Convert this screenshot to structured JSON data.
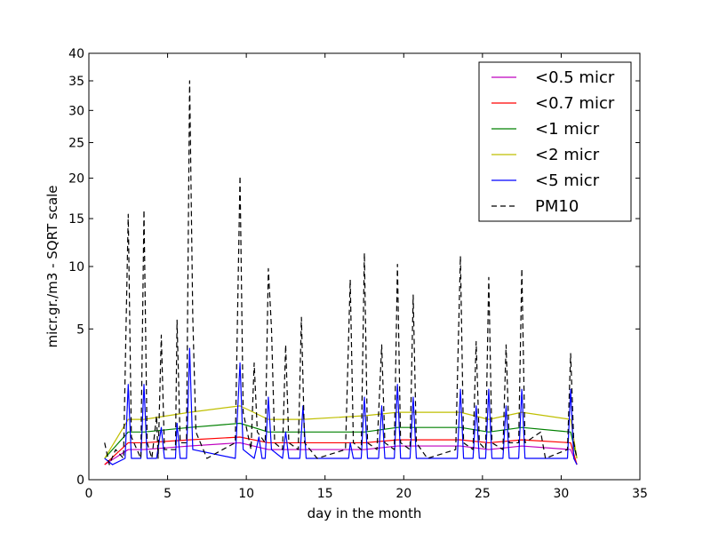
{
  "chart_data": {
    "type": "line",
    "title": "",
    "xlabel": "day in the month",
    "ylabel": "micr.gr./m3 - SQRT scale",
    "xlim": [
      0,
      35
    ],
    "ylim": [
      0,
      40
    ],
    "y_scale": "sqrt",
    "grid": false,
    "legend_position": "top-right",
    "x_ticks": [
      0,
      5,
      10,
      15,
      20,
      25,
      30,
      35
    ],
    "y_ticks": [
      0,
      5,
      10,
      15,
      20,
      25,
      30,
      35,
      40
    ],
    "series": [
      {
        "name": "<0.5 micr",
        "color": "#bf00bf",
        "style": "solid",
        "points": [
          [
            1.0,
            0.05
          ],
          [
            2.5,
            0.2
          ],
          [
            3.5,
            0.2
          ],
          [
            6.4,
            0.25
          ],
          [
            9.6,
            0.3
          ],
          [
            11.4,
            0.2
          ],
          [
            13.6,
            0.2
          ],
          [
            17.5,
            0.2
          ],
          [
            19.6,
            0.25
          ],
          [
            23.6,
            0.25
          ],
          [
            25.4,
            0.2
          ],
          [
            27.5,
            0.25
          ],
          [
            30.6,
            0.2
          ],
          [
            31.0,
            0.05
          ]
        ]
      },
      {
        "name": "<0.7 micr",
        "color": "#ff0000",
        "style": "solid",
        "points": [
          [
            1.0,
            0.05
          ],
          [
            2.5,
            0.3
          ],
          [
            3.5,
            0.3
          ],
          [
            6.4,
            0.35
          ],
          [
            9.6,
            0.4
          ],
          [
            11.4,
            0.3
          ],
          [
            13.6,
            0.3
          ],
          [
            17.5,
            0.3
          ],
          [
            19.6,
            0.35
          ],
          [
            23.6,
            0.35
          ],
          [
            25.4,
            0.3
          ],
          [
            27.5,
            0.35
          ],
          [
            30.6,
            0.3
          ],
          [
            31.0,
            0.05
          ]
        ]
      },
      {
        "name": "<1 micr",
        "color": "#008000",
        "style": "solid",
        "points": [
          [
            1.0,
            0.1
          ],
          [
            2.5,
            0.5
          ],
          [
            3.5,
            0.5
          ],
          [
            6.4,
            0.6
          ],
          [
            9.6,
            0.7
          ],
          [
            11.4,
            0.5
          ],
          [
            13.6,
            0.5
          ],
          [
            17.5,
            0.5
          ],
          [
            19.6,
            0.6
          ],
          [
            23.6,
            0.6
          ],
          [
            25.4,
            0.5
          ],
          [
            27.5,
            0.6
          ],
          [
            30.6,
            0.5
          ],
          [
            31.0,
            0.1
          ]
        ]
      },
      {
        "name": "<2 micr",
        "color": "#bfbf00",
        "style": "solid",
        "points": [
          [
            1.0,
            0.1
          ],
          [
            2.5,
            0.8
          ],
          [
            3.5,
            0.8
          ],
          [
            6.4,
            1.0
          ],
          [
            9.6,
            1.2
          ],
          [
            11.4,
            0.8
          ],
          [
            13.6,
            0.8
          ],
          [
            17.5,
            0.9
          ],
          [
            19.6,
            1.0
          ],
          [
            23.6,
            1.0
          ],
          [
            25.4,
            0.8
          ],
          [
            27.5,
            1.0
          ],
          [
            30.6,
            0.8
          ],
          [
            31.0,
            0.1
          ]
        ]
      },
      {
        "name": "<5 micr",
        "color": "#0000ff",
        "style": "solid",
        "points": [
          [
            1.0,
            0.1
          ],
          [
            1.5,
            0.05
          ],
          [
            2.3,
            0.1
          ],
          [
            2.5,
            2.0
          ],
          [
            2.7,
            0.1
          ],
          [
            3.3,
            0.1
          ],
          [
            3.5,
            2.0
          ],
          [
            3.7,
            0.1
          ],
          [
            4.3,
            0.1
          ],
          [
            4.6,
            0.6
          ],
          [
            4.8,
            0.1
          ],
          [
            5.5,
            0.1
          ],
          [
            5.6,
            0.7
          ],
          [
            5.8,
            0.1
          ],
          [
            6.2,
            0.1
          ],
          [
            6.4,
            3.8
          ],
          [
            6.6,
            0.2
          ],
          [
            9.3,
            0.1
          ],
          [
            9.6,
            3.0
          ],
          [
            9.8,
            0.2
          ],
          [
            10.5,
            0.1
          ],
          [
            10.8,
            0.4
          ],
          [
            11.0,
            0.1
          ],
          [
            11.2,
            0.1
          ],
          [
            11.4,
            1.5
          ],
          [
            11.6,
            0.2
          ],
          [
            12.3,
            0.1
          ],
          [
            12.5,
            0.5
          ],
          [
            12.7,
            0.1
          ],
          [
            13.4,
            0.1
          ],
          [
            13.6,
            1.2
          ],
          [
            13.8,
            0.1
          ],
          [
            16.5,
            0.1
          ],
          [
            16.6,
            0.3
          ],
          [
            16.8,
            0.1
          ],
          [
            17.3,
            0.1
          ],
          [
            17.5,
            1.5
          ],
          [
            17.7,
            0.1
          ],
          [
            18.4,
            0.1
          ],
          [
            18.6,
            1.2
          ],
          [
            18.8,
            0.1
          ],
          [
            19.4,
            0.1
          ],
          [
            19.6,
            2.0
          ],
          [
            19.8,
            0.1
          ],
          [
            20.4,
            0.1
          ],
          [
            20.6,
            1.5
          ],
          [
            20.8,
            0.1
          ],
          [
            23.4,
            0.1
          ],
          [
            23.6,
            1.8
          ],
          [
            23.8,
            0.1
          ],
          [
            24.4,
            0.1
          ],
          [
            24.6,
            1.2
          ],
          [
            24.8,
            0.1
          ],
          [
            25.2,
            0.1
          ],
          [
            25.4,
            1.8
          ],
          [
            25.6,
            0.1
          ],
          [
            26.3,
            0.1
          ],
          [
            26.5,
            1.2
          ],
          [
            26.7,
            0.1
          ],
          [
            27.3,
            0.1
          ],
          [
            27.5,
            1.8
          ],
          [
            27.7,
            0.1
          ],
          [
            30.4,
            0.1
          ],
          [
            30.6,
            1.8
          ],
          [
            30.8,
            0.1
          ],
          [
            31.0,
            0.05
          ]
        ]
      },
      {
        "name": "PM10",
        "color": "#000000",
        "style": "dashed",
        "points": [
          [
            1.0,
            0.3
          ],
          [
            1.3,
            0.05
          ],
          [
            1.7,
            0.2
          ],
          [
            2.2,
            0.1
          ],
          [
            2.5,
            15.5
          ],
          [
            2.7,
            0.4
          ],
          [
            3.3,
            0.1
          ],
          [
            3.5,
            16.0
          ],
          [
            3.7,
            0.3
          ],
          [
            4.0,
            0.1
          ],
          [
            4.3,
            0.9
          ],
          [
            4.4,
            0.1
          ],
          [
            4.6,
            4.6
          ],
          [
            4.8,
            0.2
          ],
          [
            5.5,
            0.2
          ],
          [
            5.6,
            5.6
          ],
          [
            5.8,
            0.3
          ],
          [
            6.2,
            0.3
          ],
          [
            6.4,
            35.0
          ],
          [
            6.6,
            5.8
          ],
          [
            6.8,
            0.5
          ],
          [
            7.5,
            0.1
          ],
          [
            8.5,
            0.2
          ],
          [
            9.3,
            0.3
          ],
          [
            9.6,
            20.3
          ],
          [
            9.8,
            1.0
          ],
          [
            10.3,
            0.2
          ],
          [
            10.5,
            3.0
          ],
          [
            10.7,
            0.5
          ],
          [
            11.2,
            0.3
          ],
          [
            11.4,
            9.8
          ],
          [
            11.6,
            5.0
          ],
          [
            11.8,
            0.3
          ],
          [
            12.3,
            0.2
          ],
          [
            12.5,
            4.0
          ],
          [
            12.7,
            0.3
          ],
          [
            13.3,
            0.2
          ],
          [
            13.5,
            5.8
          ],
          [
            13.7,
            0.3
          ],
          [
            14.5,
            0.1
          ],
          [
            16.3,
            0.2
          ],
          [
            16.6,
            8.8
          ],
          [
            16.8,
            0.3
          ],
          [
            17.3,
            0.2
          ],
          [
            17.5,
            11.3
          ],
          [
            17.7,
            0.3
          ],
          [
            18.3,
            0.2
          ],
          [
            18.6,
            4.0
          ],
          [
            18.8,
            0.3
          ],
          [
            19.4,
            0.2
          ],
          [
            19.6,
            10.2
          ],
          [
            19.8,
            0.3
          ],
          [
            20.4,
            0.2
          ],
          [
            20.6,
            7.5
          ],
          [
            20.8,
            0.3
          ],
          [
            21.5,
            0.1
          ],
          [
            23.3,
            0.2
          ],
          [
            23.6,
            11.0
          ],
          [
            23.8,
            0.3
          ],
          [
            24.4,
            0.2
          ],
          [
            24.6,
            4.2
          ],
          [
            24.8,
            0.3
          ],
          [
            25.2,
            0.2
          ],
          [
            25.4,
            9.0
          ],
          [
            25.6,
            0.3
          ],
          [
            26.3,
            0.2
          ],
          [
            26.5,
            4.0
          ],
          [
            26.7,
            0.3
          ],
          [
            27.3,
            0.3
          ],
          [
            27.5,
            9.8
          ],
          [
            27.7,
            0.3
          ],
          [
            28.7,
            0.5
          ],
          [
            29.0,
            0.1
          ],
          [
            30.4,
            0.2
          ],
          [
            30.6,
            3.5
          ],
          [
            30.8,
            0.3
          ],
          [
            31.0,
            0.1
          ]
        ]
      }
    ]
  }
}
